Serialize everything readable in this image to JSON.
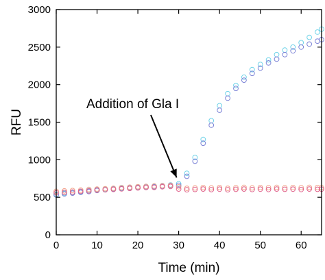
{
  "chart_data": {
    "type": "scatter",
    "title": "",
    "xlabel": "Time (min)",
    "ylabel": "RFU",
    "xlim": [
      0,
      65
    ],
    "ylim": [
      0,
      3000
    ],
    "xticks": [
      0,
      10,
      20,
      30,
      40,
      50,
      60
    ],
    "yticks": [
      0,
      500,
      1000,
      1500,
      2000,
      2500,
      3000
    ],
    "grid": false,
    "legend": "none",
    "marker": "open-circle",
    "annotation": {
      "text": "Addition of Gla I",
      "x": 30,
      "y": 680
    },
    "series": [
      {
        "color": "#6fd3e8",
        "x": [
          0,
          2,
          4,
          6,
          8,
          10,
          12,
          14,
          16,
          18,
          20,
          22,
          24,
          26,
          28,
          30,
          32,
          34,
          36,
          38,
          40,
          42,
          44,
          46,
          48,
          50,
          52,
          54,
          56,
          58,
          60,
          62,
          64,
          65
        ],
        "y": [
          540,
          555,
          565,
          575,
          590,
          600,
          610,
          615,
          620,
          630,
          640,
          645,
          650,
          655,
          665,
          680,
          820,
          1030,
          1270,
          1520,
          1720,
          1880,
          1990,
          2100,
          2200,
          2270,
          2330,
          2400,
          2460,
          2500,
          2560,
          2630,
          2700,
          2740
        ]
      },
      {
        "color": "#7b82d6",
        "x": [
          0,
          2,
          4,
          6,
          8,
          10,
          12,
          14,
          16,
          18,
          20,
          22,
          24,
          26,
          28,
          30,
          32,
          34,
          36,
          38,
          40,
          42,
          44,
          46,
          48,
          50,
          52,
          54,
          56,
          58,
          60,
          62,
          64,
          65
        ],
        "y": [
          530,
          545,
          555,
          565,
          575,
          590,
          600,
          610,
          615,
          620,
          630,
          635,
          640,
          650,
          655,
          660,
          780,
          980,
          1220,
          1460,
          1660,
          1820,
          1950,
          2060,
          2150,
          2220,
          2290,
          2340,
          2400,
          2450,
          2500,
          2540,
          2580,
          2600
        ]
      },
      {
        "color": "#f2a58c",
        "x": [
          0,
          2,
          4,
          6,
          8,
          10,
          12,
          14,
          16,
          18,
          20,
          22,
          24,
          26,
          28,
          30,
          32,
          34,
          36,
          38,
          40,
          42,
          44,
          46,
          48,
          50,
          52,
          54,
          56,
          58,
          60,
          62,
          64,
          65
        ],
        "y": [
          580,
          585,
          590,
          595,
          605,
          610,
          615,
          620,
          630,
          635,
          640,
          645,
          650,
          655,
          660,
          640,
          620,
          625,
          630,
          625,
          630,
          620,
          628,
          632,
          625,
          630,
          628,
          632,
          626,
          630,
          628,
          632,
          630,
          628
        ]
      },
      {
        "color": "#e0608a",
        "x": [
          0,
          2,
          4,
          6,
          8,
          10,
          12,
          14,
          16,
          18,
          20,
          22,
          24,
          26,
          28,
          30,
          32,
          34,
          36,
          38,
          40,
          42,
          44,
          46,
          48,
          50,
          52,
          54,
          56,
          58,
          60,
          62,
          64,
          65
        ],
        "y": [
          560,
          565,
          570,
          580,
          585,
          595,
          600,
          605,
          612,
          618,
          625,
          630,
          632,
          640,
          645,
          610,
          600,
          605,
          610,
          602,
          608,
          600,
          606,
          610,
          604,
          608,
          604,
          610,
          606,
          608,
          604,
          610,
          606,
          608
        ]
      }
    ]
  }
}
